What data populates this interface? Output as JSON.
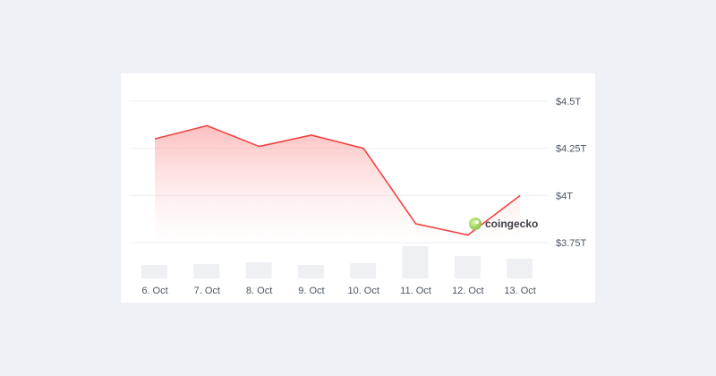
{
  "chart_data": {
    "type": "area",
    "title": "",
    "xlabel": "",
    "ylabel": "",
    "categories": [
      "6. Oct",
      "7. Oct",
      "8. Oct",
      "9. Oct",
      "10. Oct",
      "11. Oct",
      "12. Oct",
      "13. Oct"
    ],
    "series": [
      {
        "values": [
          4.3,
          4.37,
          4.26,
          4.32,
          4.25,
          3.85,
          3.79,
          4.0
        ],
        "unit": "$ trillion"
      },
      {
        "type": "bar",
        "values": [
          15,
          16,
          18,
          15,
          17,
          36,
          25,
          22
        ]
      }
    ],
    "y_ticks": [
      "$3.75T",
      "$4T",
      "$4.25T",
      "$4.5T"
    ],
    "y_tick_values": [
      3.75,
      4.0,
      4.25,
      4.5
    ],
    "ylim": [
      3.75,
      4.5
    ],
    "grid": true,
    "y_axis_side": "right",
    "line_color": "#ef4444",
    "bar_color": "#eef0f4",
    "watermark": "coingecko"
  }
}
